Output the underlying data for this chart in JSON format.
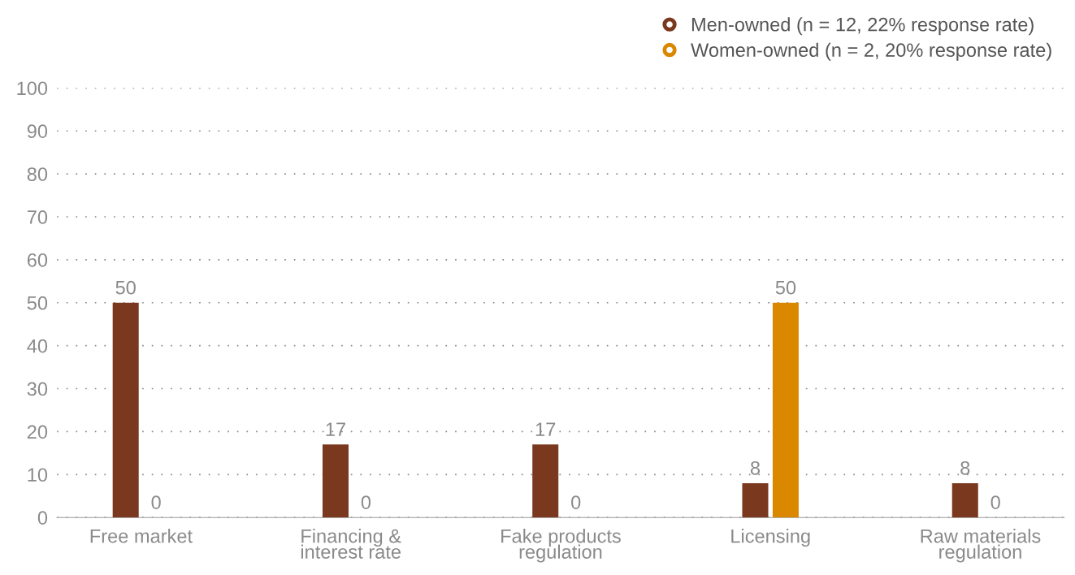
{
  "chart_data": {
    "type": "bar",
    "categories": [
      "Free market",
      "Financing &\ninterest rate",
      "Fake products\nregulation",
      "Licensing",
      "Raw materials\nregulation"
    ],
    "series": [
      {
        "name": "Men-owned (n = 12, 22% response rate)",
        "color": "#7a381e",
        "values": [
          50,
          17,
          17,
          8,
          8
        ]
      },
      {
        "name": "Women-owned (n = 2, 20% response rate)",
        "color": "#d98800",
        "values": [
          0,
          0,
          0,
          50,
          0
        ]
      }
    ],
    "ylim": [
      0,
      100
    ],
    "yticks": [
      0,
      10,
      20,
      30,
      40,
      50,
      60,
      70,
      80,
      90,
      100
    ],
    "grid": "y",
    "legend": "top right",
    "data_labels": true
  }
}
